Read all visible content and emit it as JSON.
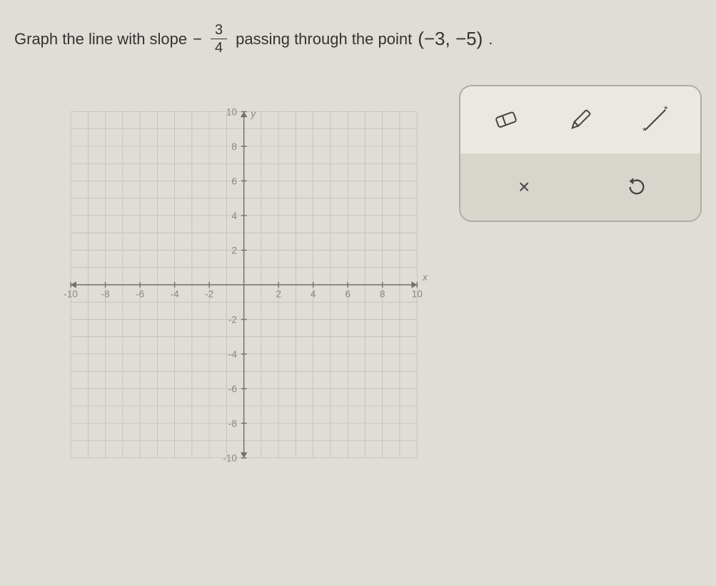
{
  "problem": {
    "prefix": "Graph the line with slope",
    "negative_sign": "−",
    "slope_numerator": "3",
    "slope_denominator": "4",
    "middle": "passing through the point",
    "point": "(−3, −5)",
    "period": "."
  },
  "graph": {
    "xlim": [
      -10,
      10
    ],
    "ylim": [
      -10,
      10
    ],
    "x_tick_labels_neg": [
      "-10",
      "-8",
      "-6",
      "-4",
      "-2"
    ],
    "x_tick_labels_pos": [
      "2",
      "4",
      "6",
      "8",
      "10"
    ],
    "y_tick_labels_pos": [
      "2",
      "4",
      "6",
      "8",
      "10"
    ],
    "y_tick_labels_neg": [
      "-2",
      "-4",
      "-6",
      "-8",
      "-10"
    ],
    "x_axis_label": "x",
    "y_axis_label": "y",
    "tick_step": 2,
    "grid_step": 1,
    "axis_color": "#707070",
    "grid_color": "#bbb9b2",
    "label_color": "#8a8780",
    "label_fontsize": 14,
    "background_color": "#e0ddd6"
  },
  "toolbox": {
    "tools": {
      "eraser": "eraser-icon",
      "pencil": "pencil-icon",
      "line": "line-tool-icon",
      "clear": "×",
      "reset": "reset-icon"
    }
  }
}
